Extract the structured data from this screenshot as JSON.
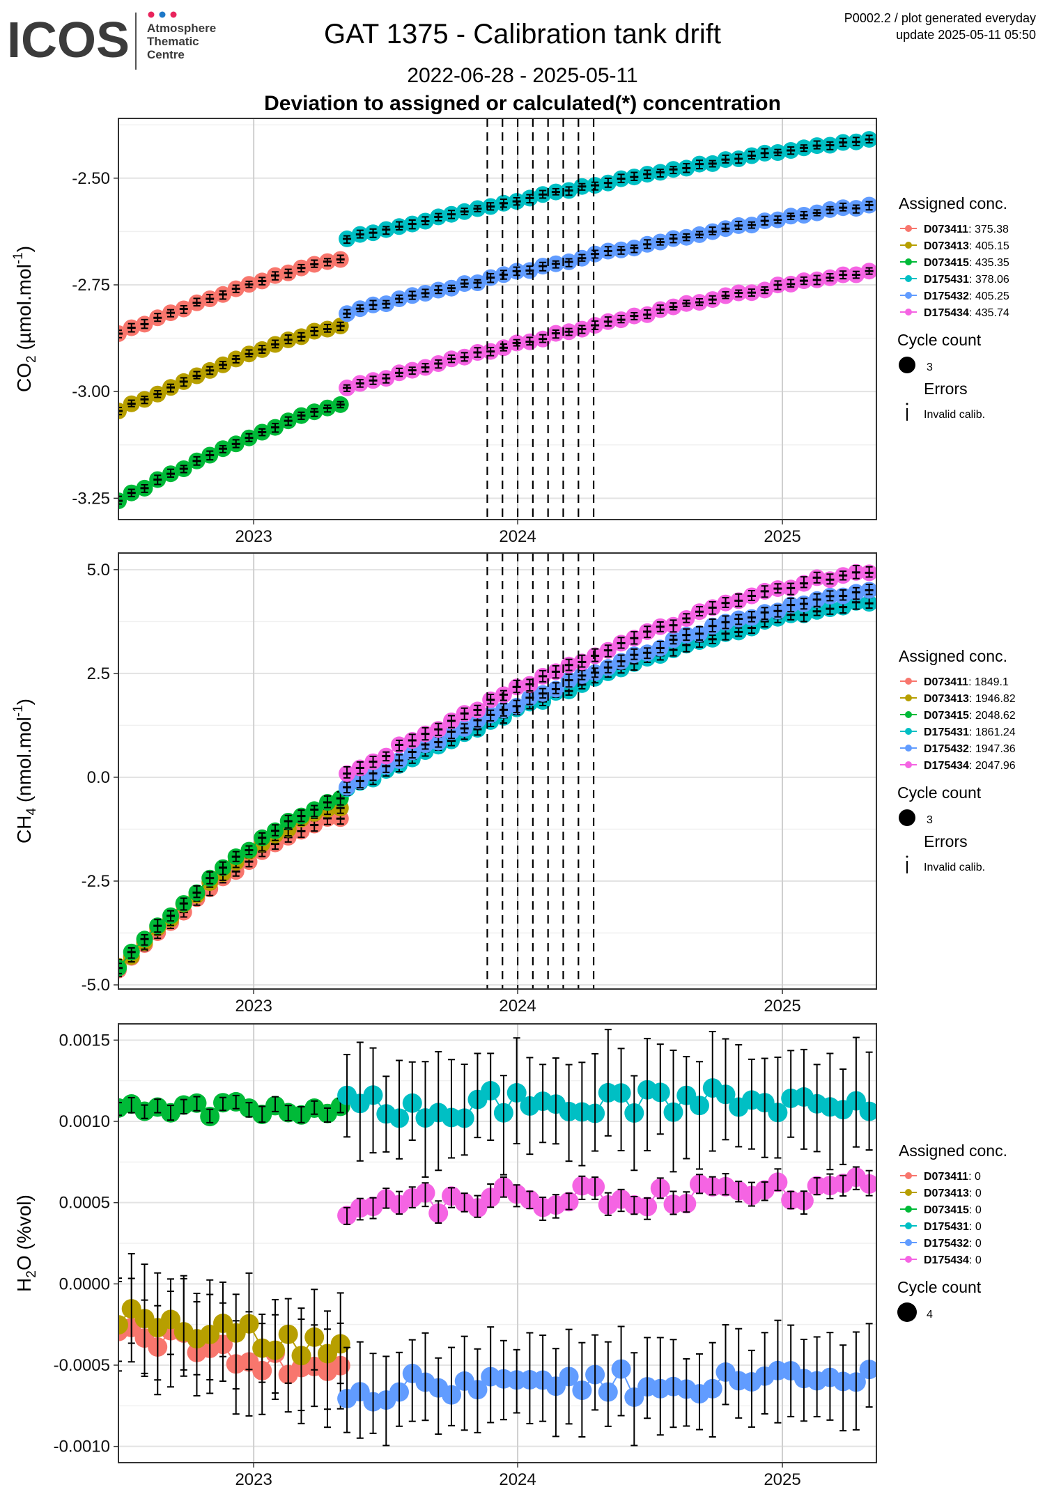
{
  "header": {
    "logo_text": "ICOS",
    "logo_sub_line1": "Atmosphere",
    "logo_sub_line2": "Thematic",
    "logo_sub_line3": "Centre",
    "title": "GAT 1375 - Calibration tank drift",
    "date_range": "2022-06-28 - 2025-05-11",
    "subtitle": "Deviation to assigned or calculated(*) concentration",
    "meta_line1": "P0002.2 / plot generated everyday",
    "meta_line2": "update  2025-05-11 05:50"
  },
  "colors": {
    "D073411": "#F8766D",
    "D073413": "#B79F00",
    "D073415": "#00BA38",
    "D175431": "#00BFC4",
    "D175432": "#619CFF",
    "D175434": "#F564E3"
  },
  "chart_data": [
    {
      "type": "scatter",
      "panel": "co2",
      "ylabel_main": "CO",
      "ylabel_sub": "2",
      "ylabel_unit": " (µmol.mol",
      "ylabel_sup": "-1",
      "ylabel_close": ")",
      "yticks": [
        -2.5,
        -2.75,
        -3.0,
        -3.25
      ],
      "ytick_labels": [
        "-2.50",
        "-2.75",
        "-3.00",
        "-3.25"
      ],
      "ylim": [
        -3.3,
        -2.36
      ],
      "xticks": [
        "2023",
        "2024",
        "2025"
      ],
      "xlim": [
        "2022-06-28",
        "2025-05-11"
      ],
      "vlines": [
        "2023-11-20",
        "2023-12-11",
        "2024-01-01",
        "2024-01-22",
        "2024-02-12",
        "2024-03-04",
        "2024-03-25",
        "2024-04-15"
      ],
      "legend": {
        "title": "Assigned conc.",
        "entries": [
          {
            "id": "D073411",
            "value": ": 375.38"
          },
          {
            "id": "D073413",
            "value": ": 405.15"
          },
          {
            "id": "D073415",
            "value": ": 435.35"
          },
          {
            "id": "D175431",
            "value": ": 378.06"
          },
          {
            "id": "D175432",
            "value": ": 405.25"
          },
          {
            "id": "D175434",
            "value": ": 435.74"
          }
        ],
        "cycle_title": "Cycle count",
        "cycle_value": "3",
        "errors_title": "Errors",
        "errors_value": "Invalid calib."
      },
      "series": [
        {
          "id": "D073411",
          "x0": "2022-06-28",
          "x1": "2023-05-01",
          "y0": -2.865,
          "y1": -2.69,
          "err": 0.008
        },
        {
          "id": "D073413",
          "x0": "2022-06-28",
          "x1": "2023-05-01",
          "y0": -3.045,
          "y1": -2.845,
          "err": 0.008
        },
        {
          "id": "D073415",
          "x0": "2022-06-28",
          "x1": "2023-05-01",
          "y0": -3.255,
          "y1": -3.03,
          "err": 0.008
        },
        {
          "id": "D175431",
          "x0": "2023-05-10",
          "x1": "2025-05-01",
          "y0": -2.64,
          "y1": -2.41,
          "err": 0.008
        },
        {
          "id": "D175432",
          "x0": "2023-05-10",
          "x1": "2025-05-01",
          "y0": -2.815,
          "y1": -2.565,
          "err": 0.008
        },
        {
          "id": "D175434",
          "x0": "2023-05-10",
          "x1": "2025-05-01",
          "y0": -2.99,
          "y1": -2.72,
          "err": 0.008
        }
      ]
    },
    {
      "type": "scatter",
      "panel": "ch4",
      "ylabel_main": "CH",
      "ylabel_sub": "4",
      "ylabel_unit": " (nmol.mol",
      "ylabel_sup": "-1",
      "ylabel_close": ")",
      "yticks": [
        5.0,
        2.5,
        0.0,
        -2.5,
        -5.0
      ],
      "ytick_labels": [
        "5.0",
        "2.5",
        "0.0",
        "-2.5",
        "-5.0"
      ],
      "ylim": [
        -5.1,
        5.4
      ],
      "xticks": [
        "2023",
        "2024",
        "2025"
      ],
      "xlim": [
        "2022-06-28",
        "2025-05-11"
      ],
      "vlines": [
        "2023-11-20",
        "2023-12-11",
        "2024-01-01",
        "2024-01-22",
        "2024-02-12",
        "2024-03-04",
        "2024-03-25",
        "2024-04-15"
      ],
      "legend": {
        "title": "Assigned conc.",
        "entries": [
          {
            "id": "D073411",
            "value": ": 1849.1"
          },
          {
            "id": "D073413",
            "value": ": 1946.82"
          },
          {
            "id": "D073415",
            "value": ": 2048.62"
          },
          {
            "id": "D175431",
            "value": ": 1861.24"
          },
          {
            "id": "D175432",
            "value": ": 1947.36"
          },
          {
            "id": "D175434",
            "value": ": 2047.96"
          }
        ],
        "cycle_title": "Cycle count",
        "cycle_value": "3",
        "errors_title": "Errors",
        "errors_value": "Invalid calib."
      },
      "series": [
        {
          "id": "D073411",
          "x0": "2022-06-28",
          "x1": "2023-05-01",
          "y0": -4.65,
          "y1": -0.95,
          "err": 0.12
        },
        {
          "id": "D073413",
          "x0": "2022-06-28",
          "x1": "2023-05-01",
          "y0": -4.6,
          "y1": -0.7,
          "err": 0.12
        },
        {
          "id": "D073415",
          "x0": "2022-06-28",
          "x1": "2023-05-01",
          "y0": -4.58,
          "y1": -0.55,
          "err": 0.12
        },
        {
          "id": "D175431",
          "x0": "2023-05-10",
          "x1": "2025-05-01",
          "y0": -0.3,
          "y1": 4.2,
          "err": 0.12
        },
        {
          "id": "D175432",
          "x0": "2023-05-10",
          "x1": "2025-05-01",
          "y0": -0.2,
          "y1": 4.45,
          "err": 0.12
        },
        {
          "id": "D175434",
          "x0": "2023-05-10",
          "x1": "2025-05-01",
          "y0": 0.05,
          "y1": 4.95,
          "err": 0.12
        }
      ]
    },
    {
      "type": "scatter",
      "panel": "h2o",
      "ylabel_main": "H",
      "ylabel_sub": "2",
      "ylabel_unit": "O (%vol)",
      "ylabel_sup": "",
      "ylabel_close": "",
      "yticks": [
        0.0015,
        0.001,
        0.0005,
        0.0,
        -0.0005,
        -0.001
      ],
      "ytick_labels": [
        "0.0015",
        "0.0010",
        "0.0005",
        "0.0000",
        "-0.0005",
        "-0.0010"
      ],
      "ylim": [
        -0.0011,
        0.0016
      ],
      "xticks": [
        "2023",
        "2024",
        "2025"
      ],
      "xlim": [
        "2022-06-28",
        "2025-05-11"
      ],
      "vlines": [],
      "legend": {
        "title": "Assigned conc.",
        "entries": [
          {
            "id": "D073411",
            "value": ": 0"
          },
          {
            "id": "D073413",
            "value": ": 0"
          },
          {
            "id": "D073415",
            "value": ": 0"
          },
          {
            "id": "D175431",
            "value": ": 0"
          },
          {
            "id": "D175432",
            "value": ": 0"
          },
          {
            "id": "D175434",
            "value": ": 0"
          }
        ],
        "cycle_title": "Cycle count",
        "cycle_value": "4"
      },
      "series": [
        {
          "id": "D073411",
          "x0": "2022-06-28",
          "x1": "2023-05-01",
          "y0": -0.0003,
          "y1": -0.00055,
          "err": 0.00025,
          "noise": 8e-05
        },
        {
          "id": "D073413",
          "x0": "2022-06-28",
          "x1": "2023-05-01",
          "y0": -0.0002,
          "y1": -0.0004,
          "err": 0.00025,
          "noise": 8e-05
        },
        {
          "id": "D073415",
          "x0": "2022-06-28",
          "x1": "2023-05-01",
          "y0": 0.0011,
          "y1": 0.00105,
          "err": 4e-05,
          "noise": 5e-05
        },
        {
          "id": "D175431",
          "x0": "2023-05-10",
          "x1": "2025-05-01",
          "y0": 0.0011,
          "y1": 0.00113,
          "err": 0.00028,
          "noise": 9e-05
        },
        {
          "id": "D175432",
          "x0": "2023-05-10",
          "x1": "2025-05-01",
          "y0": -0.00065,
          "y1": -0.00058,
          "err": 0.00023,
          "noise": 9e-05
        },
        {
          "id": "D175434",
          "x0": "2023-05-10",
          "x1": "2025-05-01",
          "y0": 0.0005,
          "y1": 0.00058,
          "err": 6e-05,
          "noise": 8e-05
        }
      ]
    }
  ]
}
